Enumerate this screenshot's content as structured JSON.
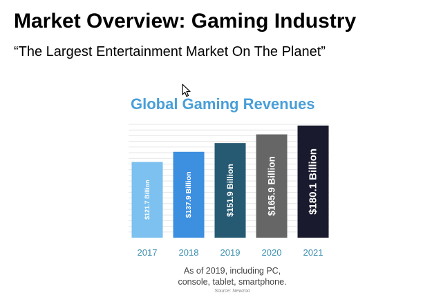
{
  "slide": {
    "title": "Market Overview: Gaming Industry",
    "subtitle": "“The Largest Entertainment Market On The Planet”"
  },
  "chart_data": {
    "type": "bar",
    "title": "Global Gaming Revenues",
    "categories": [
      "2017",
      "2018",
      "2019",
      "2020",
      "2021"
    ],
    "values": [
      121.7,
      137.9,
      151.9,
      165.9,
      180.1
    ],
    "data_labels": [
      "$121.7 Billion",
      "$137.9 Billion",
      "$151.9 Billion",
      "$165.9 Billion",
      "$180.1 Billion"
    ],
    "colors": [
      "#7cc1ef",
      "#3d8fe0",
      "#265a72",
      "#666666",
      "#1a1a2e"
    ],
    "ylim": [
      0,
      182
    ],
    "grid": true,
    "note": "As of 2019, including PC, console, tablet, smartphone.",
    "source": "Source: Newzoo",
    "category_label_color": "#3a8fb0"
  }
}
